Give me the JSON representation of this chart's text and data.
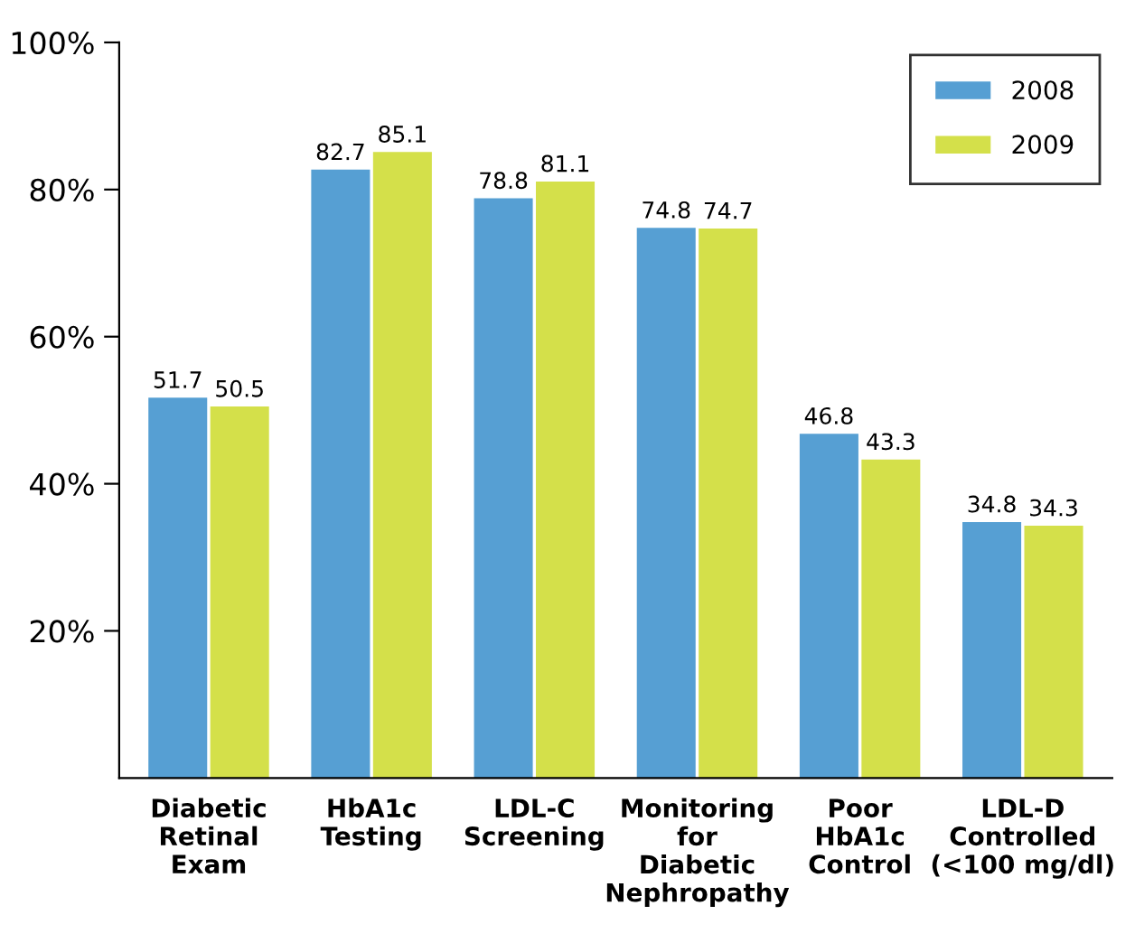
{
  "chart_data": {
    "type": "bar",
    "categories": [
      "Diabetic\nRetinal\nExam",
      "HbA1c\nTesting",
      "LDL-C\nScreening",
      "Monitoring\nfor\nDiabetic\nNephropathy",
      "Poor\nHbA1c\nControl",
      "LDL-D\nControlled\n(<100 mg/dl)"
    ],
    "series": [
      {
        "name": "2008",
        "color": "#569fd3",
        "values": [
          51.7,
          82.7,
          78.8,
          74.8,
          46.8,
          34.8
        ]
      },
      {
        "name": "2009",
        "color": "#d4e04a",
        "values": [
          50.5,
          85.1,
          81.1,
          74.7,
          43.3,
          34.3
        ]
      }
    ],
    "ylim": [
      0,
      100
    ],
    "yticks": [
      {
        "value": 20,
        "label": "20%"
      },
      {
        "value": 40,
        "label": "40%"
      },
      {
        "value": 60,
        "label": "60%"
      },
      {
        "value": 80,
        "label": "80%"
      },
      {
        "value": 100,
        "label": "100%"
      }
    ],
    "data_labels": true,
    "legend": "top right",
    "grid": false
  }
}
